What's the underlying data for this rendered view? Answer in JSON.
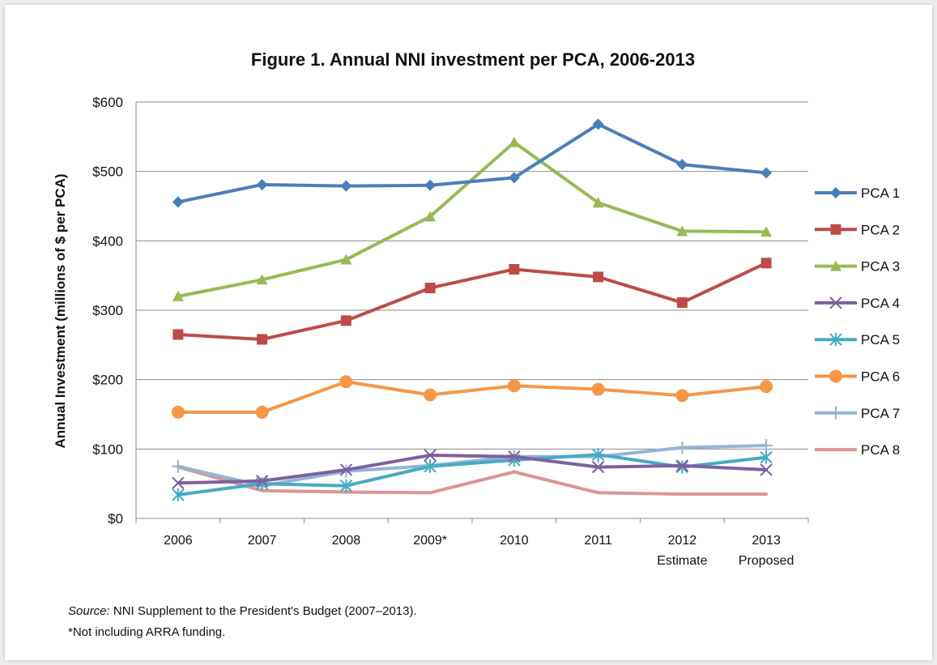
{
  "chart_data": {
    "type": "line",
    "title": "Figure 1. Annual NNI investment per PCA, 2006-2013",
    "ylabel": "Annual Investment (millions of $ per PCA)",
    "xlabel": "",
    "categories": [
      "2006",
      "2007",
      "2008",
      "2009*",
      "2010",
      "2011",
      "2012",
      "2013"
    ],
    "category_sublabels": [
      "",
      "",
      "",
      "",
      "",
      "",
      "Estimate",
      "Proposed"
    ],
    "ylim": [
      0,
      600
    ],
    "yticks": [
      0,
      100,
      200,
      300,
      400,
      500,
      600
    ],
    "ytick_labels": [
      "$0",
      "$100",
      "$200",
      "$300",
      "$400",
      "$500",
      "$600"
    ],
    "grid": true,
    "legend_position": "right",
    "series": [
      {
        "name": "PCA 1",
        "color": "#4a7ebb",
        "marker": "diamond",
        "values": [
          456,
          481,
          479,
          480,
          491,
          568,
          510,
          498
        ]
      },
      {
        "name": "PCA 2",
        "color": "#be4b48",
        "marker": "square",
        "values": [
          265,
          258,
          285,
          332,
          359,
          348,
          311,
          368
        ]
      },
      {
        "name": "PCA 3",
        "color": "#98b954",
        "marker": "triangle",
        "values": [
          320,
          344,
          373,
          435,
          542,
          455,
          414,
          413
        ]
      },
      {
        "name": "PCA 4",
        "color": "#7d60a0",
        "marker": "x",
        "values": [
          51,
          54,
          70,
          91,
          89,
          74,
          76,
          70
        ]
      },
      {
        "name": "PCA 5",
        "color": "#46aac4",
        "marker": "star",
        "values": [
          34,
          50,
          47,
          75,
          84,
          92,
          74,
          88
        ]
      },
      {
        "name": "PCA 6",
        "color": "#f79646",
        "marker": "circle",
        "values": [
          153,
          153,
          197,
          178,
          191,
          186,
          177,
          190
        ]
      },
      {
        "name": "PCA 7",
        "color": "#95b3d7",
        "marker": "plus",
        "values": [
          75,
          47,
          68,
          76,
          89,
          89,
          102,
          105
        ]
      },
      {
        "name": "PCA 8",
        "color": "#d99694",
        "marker": "none",
        "values": [
          74,
          40,
          38,
          37,
          67,
          37,
          35,
          35
        ]
      }
    ]
  },
  "notes": {
    "source_label": "Source:",
    "source_text": " NNI Supplement to the President's Budget (2007–2013).",
    "footnote": "*Not including ARRA funding."
  }
}
